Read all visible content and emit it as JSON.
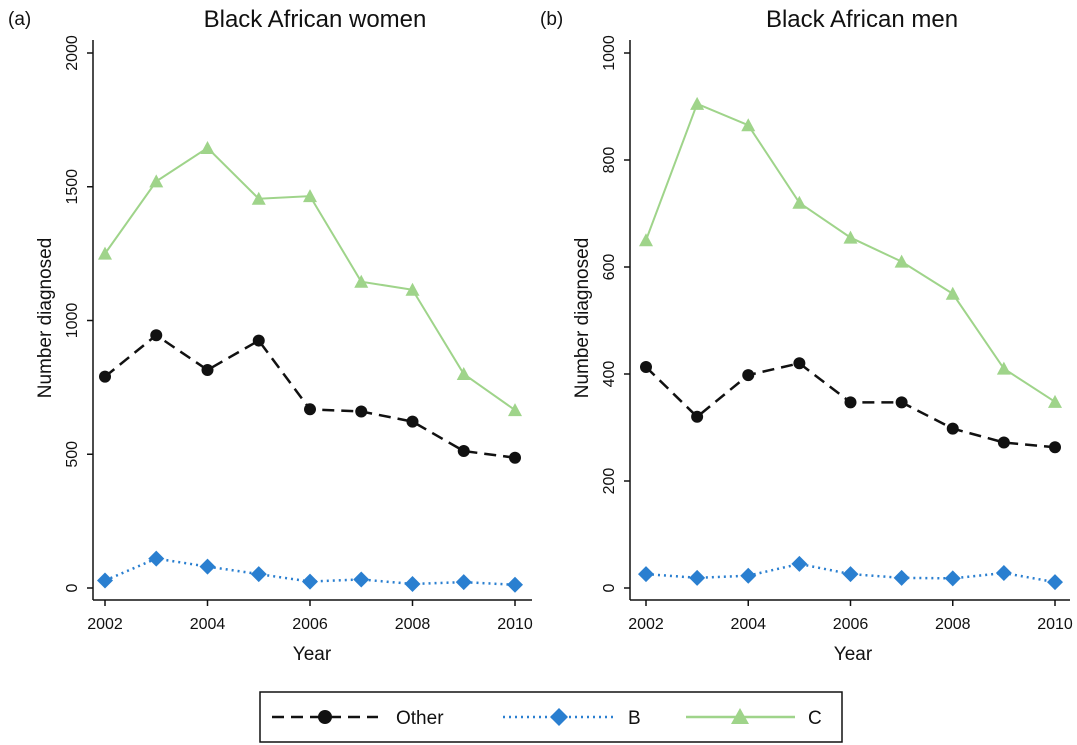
{
  "chart_data": [
    {
      "type": "line",
      "panel_label": "(a)",
      "title": "Black African women",
      "xlabel": "Year",
      "ylabel": "Number diagnosed",
      "x": [
        2002,
        2003,
        2004,
        2005,
        2006,
        2007,
        2008,
        2009,
        2010
      ],
      "xticks": [
        2002,
        2004,
        2006,
        2008,
        2010
      ],
      "xlim": [
        2002,
        2010
      ],
      "ylim": [
        0,
        2000
      ],
      "yticks": [
        0,
        500,
        1000,
        1500,
        2000
      ],
      "series": [
        {
          "name": "Other",
          "color": "#111111",
          "values": [
            790,
            945,
            815,
            925,
            668,
            660,
            622,
            512,
            487
          ]
        },
        {
          "name": "B",
          "color": "#2a7fd0",
          "values": [
            28,
            110,
            80,
            52,
            24,
            32,
            15,
            22,
            12
          ]
        },
        {
          "name": "C",
          "color": "#9fd48a",
          "values": [
            1250,
            1520,
            1645,
            1455,
            1465,
            1145,
            1115,
            800,
            665
          ]
        }
      ]
    },
    {
      "type": "line",
      "panel_label": "(b)",
      "title": "Black African men",
      "xlabel": "Year",
      "ylabel": "Number diagnosed",
      "x": [
        2002,
        2003,
        2004,
        2005,
        2006,
        2007,
        2008,
        2009,
        2010
      ],
      "xticks": [
        2002,
        2004,
        2006,
        2008,
        2010
      ],
      "xlim": [
        2002,
        2010
      ],
      "ylim": [
        0,
        1000
      ],
      "yticks": [
        0,
        200,
        400,
        600,
        800,
        1000
      ],
      "series": [
        {
          "name": "Other",
          "color": "#111111",
          "values": [
            413,
            320,
            398,
            420,
            347,
            347,
            298,
            272,
            263
          ]
        },
        {
          "name": "B",
          "color": "#2a7fd0",
          "values": [
            26,
            19,
            23,
            45,
            26,
            19,
            18,
            28,
            11
          ]
        },
        {
          "name": "C",
          "color": "#9fd48a",
          "values": [
            650,
            905,
            865,
            720,
            655,
            610,
            550,
            410,
            348
          ]
        }
      ]
    }
  ],
  "legend": {
    "position": "bottom-center",
    "items": [
      {
        "label": "Other",
        "style": "dashed",
        "marker": "circle"
      },
      {
        "label": "B",
        "style": "dotted",
        "marker": "diamond"
      },
      {
        "label": "C",
        "style": "solid",
        "marker": "triangle"
      }
    ]
  }
}
